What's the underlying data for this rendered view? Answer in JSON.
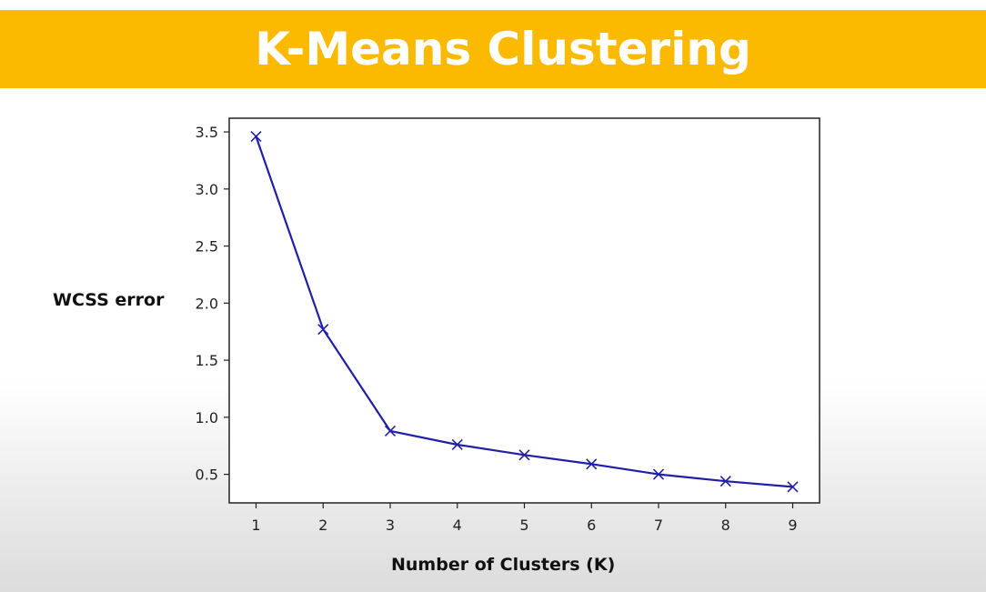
{
  "header": {
    "title": "K-Means Clustering",
    "background_color": "#fbba00",
    "text_color": "#ffffff"
  },
  "chart_data": {
    "type": "line",
    "title": "",
    "xlabel": "Number of Clusters (K)",
    "ylabel": "WCSS error",
    "x": [
      1,
      2,
      3,
      4,
      5,
      6,
      7,
      8,
      9
    ],
    "series": [
      {
        "values": [
          3.46,
          1.77,
          0.88,
          0.76,
          0.67,
          0.59,
          0.5,
          0.44,
          0.39
        ],
        "color": "#1f1fa8",
        "marker": "x"
      }
    ],
    "xlim": [
      0.6,
      9.4
    ],
    "ylim": [
      0.25,
      3.62
    ],
    "xticks": [
      1,
      2,
      3,
      4,
      5,
      6,
      7,
      8,
      9
    ],
    "yticks": [
      0.5,
      1.0,
      1.5,
      2.0,
      2.5,
      3.0,
      3.5
    ],
    "xtick_labels": [
      "1",
      "2",
      "3",
      "4",
      "5",
      "6",
      "7",
      "8",
      "9"
    ],
    "ytick_labels": [
      "0.5",
      "1.0",
      "1.5",
      "2.0",
      "2.5",
      "3.0",
      "3.5"
    ],
    "grid": false,
    "legend": "none"
  }
}
